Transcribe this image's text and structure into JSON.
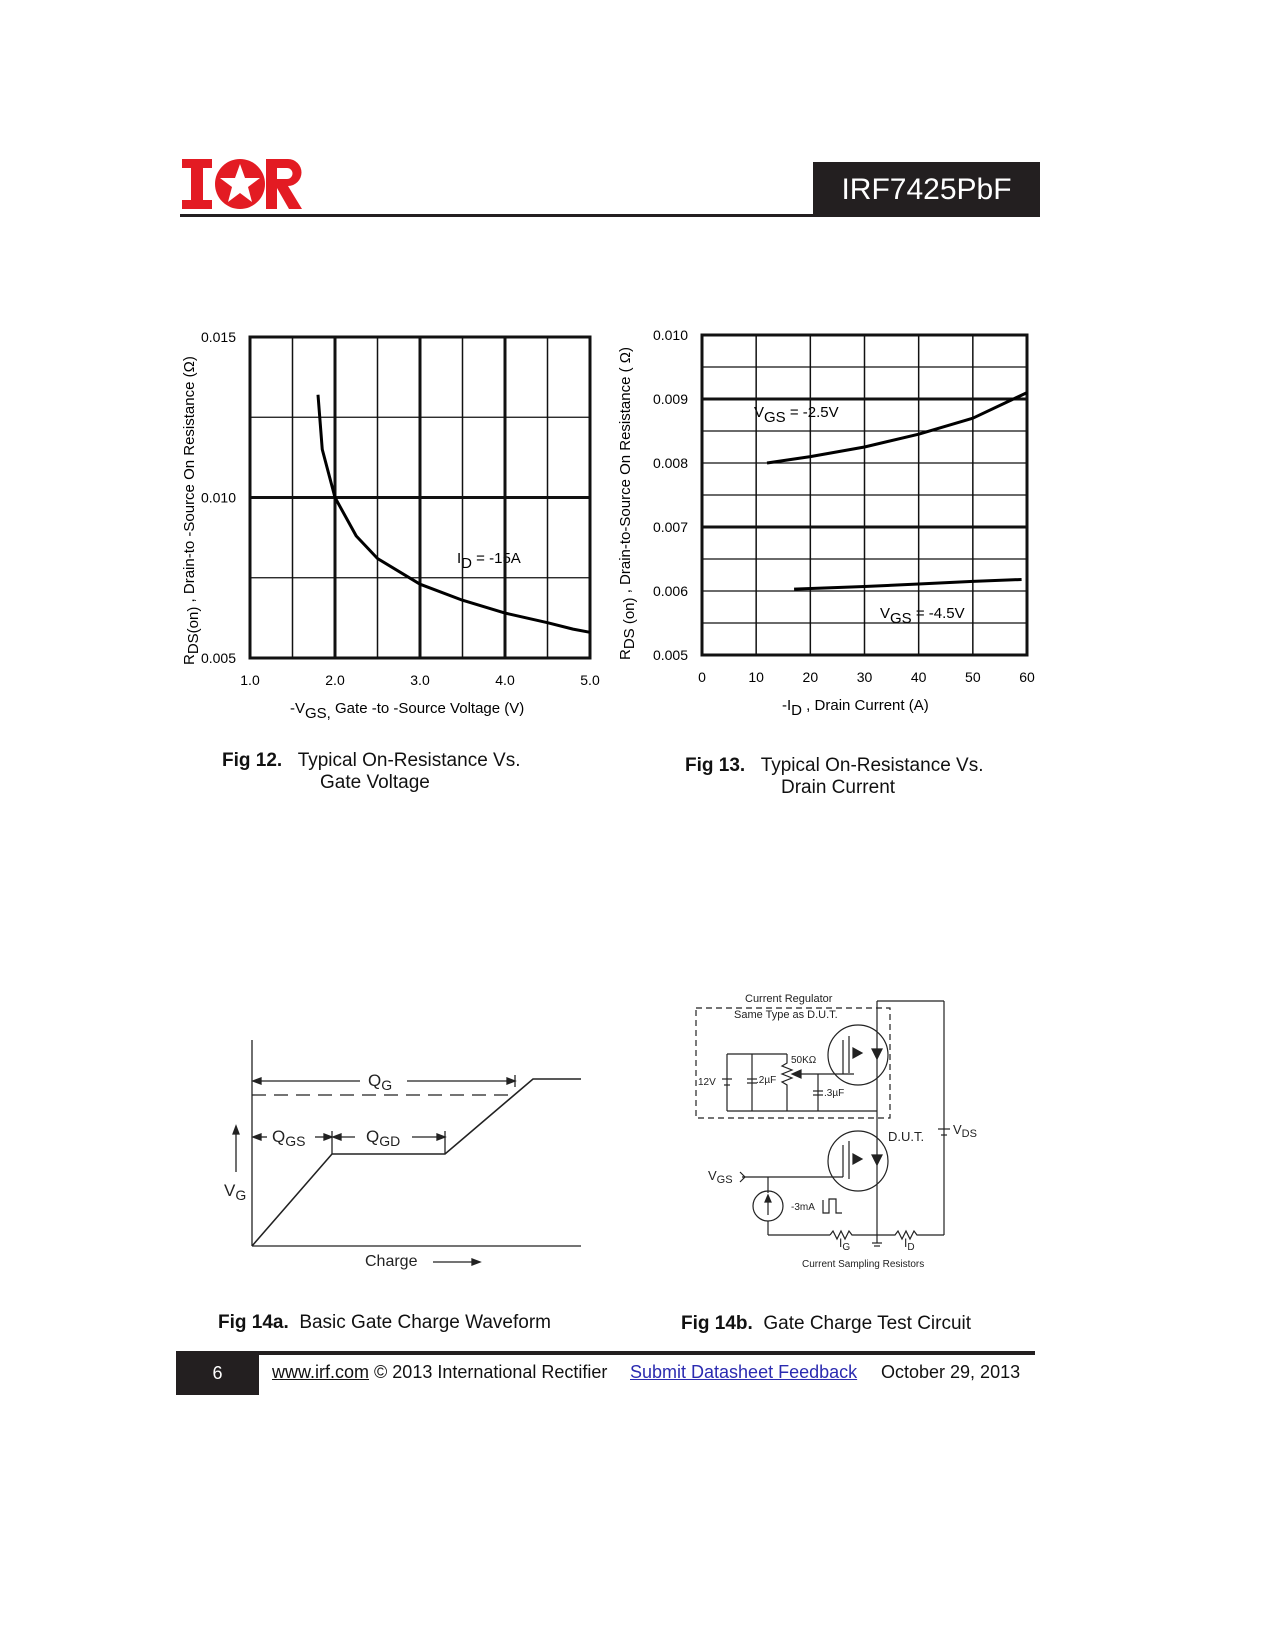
{
  "header": {
    "logo_text": "IOR",
    "part_number": "IRF7425PbF",
    "brand_color": "#e31b23"
  },
  "fig12": {
    "caption_num": "Fig 12.",
    "caption_line1": "Typical On-Resistance Vs.",
    "caption_line2": "Gate Voltage"
  },
  "fig13": {
    "caption_num": "Fig 13.",
    "caption_line1": "Typical On-Resistance Vs.",
    "caption_line2": "Drain Current"
  },
  "fig14a": {
    "caption_num": "Fig 14a.",
    "caption_text": "Basic Gate Charge Waveform",
    "qg": "Q",
    "qg_sub": "G",
    "qgs": "Q",
    "qgs_sub": "GS",
    "qgd": "Q",
    "qgd_sub": "GD",
    "vg": "V",
    "vg_sub": "G",
    "xlabel": "Charge"
  },
  "fig14b": {
    "caption_num": "Fig 14b.",
    "caption_text": "Gate Charge Test Circuit",
    "reg_line1": "Current  Regulator",
    "reg_line2": "Same  Type  as  D.U.T.",
    "v12": "12V",
    "c1": ".2µF",
    "r1": "50KΩ",
    "c2": ".3µF",
    "dut": "D.U.T.",
    "vds": "V",
    "vds_sub": "DS",
    "vgs": "V",
    "vgs_sub": "GS",
    "ig_src": "-3mA",
    "ig": "I",
    "ig_sub": "G",
    "id": "I",
    "id_sub": "D",
    "sampling": "Current  Sampling  Resistors"
  },
  "footer": {
    "page": "6",
    "site": "www.irf.com",
    "copyright": "© 2013 International Rectifier",
    "feedback": "Submit Datasheet Feedback",
    "date": "October 29, 2013"
  },
  "chart_data": [
    {
      "type": "line",
      "title": "",
      "xlabel_main": "-V",
      "xlabel_sub": "GS,",
      "xlabel_rest": " Gate -to -Source Voltage  (V)",
      "ylabel_main": "R",
      "ylabel_sub": "DS(on)",
      "ylabel_rest": " ,  Drain-to -Source On Resistance (Ω)",
      "xlim": [
        1.0,
        5.0
      ],
      "ylim": [
        0.005,
        0.015
      ],
      "grid": true,
      "xticks": [
        "1.0",
        "2.0",
        "3.0",
        "4.0",
        "5.0"
      ],
      "yticks": [
        "0.005",
        "0.010",
        "0.015"
      ],
      "series": [
        {
          "name": "ID = -15A",
          "label_main": "I",
          "label_sub": "D",
          "label_rest": " = -15A",
          "x": [
            1.8,
            1.85,
            2.0,
            2.25,
            2.5,
            3.0,
            3.5,
            4.0,
            4.5,
            4.8,
            5.0
          ],
          "y": [
            0.0132,
            0.0115,
            0.01,
            0.0088,
            0.0081,
            0.0073,
            0.0068,
            0.0064,
            0.0061,
            0.0059,
            0.0058
          ]
        }
      ]
    },
    {
      "type": "line",
      "title": "",
      "xlabel_main": "-I",
      "xlabel_sub": "D",
      "xlabel_rest": " , Drain Current (A)",
      "ylabel_main": "R",
      "ylabel_sub": "DS (on)",
      "ylabel_rest": " ,  Drain-to-Source On Resistance ( Ω)",
      "xlim": [
        0,
        60
      ],
      "ylim": [
        0.005,
        0.01
      ],
      "grid": true,
      "xticks": [
        "0",
        "10",
        "20",
        "30",
        "40",
        "50",
        "60"
      ],
      "yticks": [
        "0.005",
        "0.006",
        "0.007",
        "0.008",
        "0.009",
        "0.010"
      ],
      "series": [
        {
          "name": "VGS = -2.5V",
          "label_main": "V",
          "label_sub": "GS",
          "label_rest": " = -2.5V",
          "x": [
            12,
            20,
            30,
            40,
            50,
            60
          ],
          "y": [
            0.008,
            0.0081,
            0.00825,
            0.00845,
            0.0087,
            0.0091
          ]
        },
        {
          "name": "VGS = -4.5V",
          "label_main": "V",
          "label_sub": "GS",
          "label_rest": " = -4.5V",
          "x": [
            17,
            30,
            40,
            50,
            59
          ],
          "y": [
            0.00603,
            0.00607,
            0.00611,
            0.00615,
            0.00618
          ]
        }
      ]
    }
  ]
}
